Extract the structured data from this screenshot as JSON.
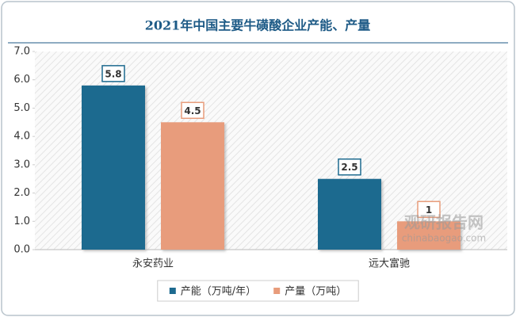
{
  "chart_data": {
    "type": "bar",
    "title": "2021年中国主要牛磺酸企业产能、产量",
    "categories": [
      "永安药业",
      "远大富驰"
    ],
    "series": [
      {
        "name": "产能（万吨/年）",
        "color": "#1d6a8f",
        "values": [
          5.8,
          2.5
        ]
      },
      {
        "name": "产量（万吨）",
        "color": "#e89c7b",
        "values": [
          4.5,
          1
        ]
      }
    ],
    "ylim": [
      0,
      7
    ],
    "yticks": [
      {
        "value": 0,
        "label": "0.0"
      },
      {
        "value": 1,
        "label": "1.0"
      },
      {
        "value": 2,
        "label": "2.0"
      },
      {
        "value": 3,
        "label": "3.0"
      },
      {
        "value": 4,
        "label": "4.0"
      },
      {
        "value": 5,
        "label": "5.0"
      },
      {
        "value": 6,
        "label": "6.0"
      },
      {
        "value": 7,
        "label": "7.0"
      }
    ],
    "legend": "bottom",
    "watermark": [
      "观研报告网",
      "chinabaogao.com"
    ]
  }
}
